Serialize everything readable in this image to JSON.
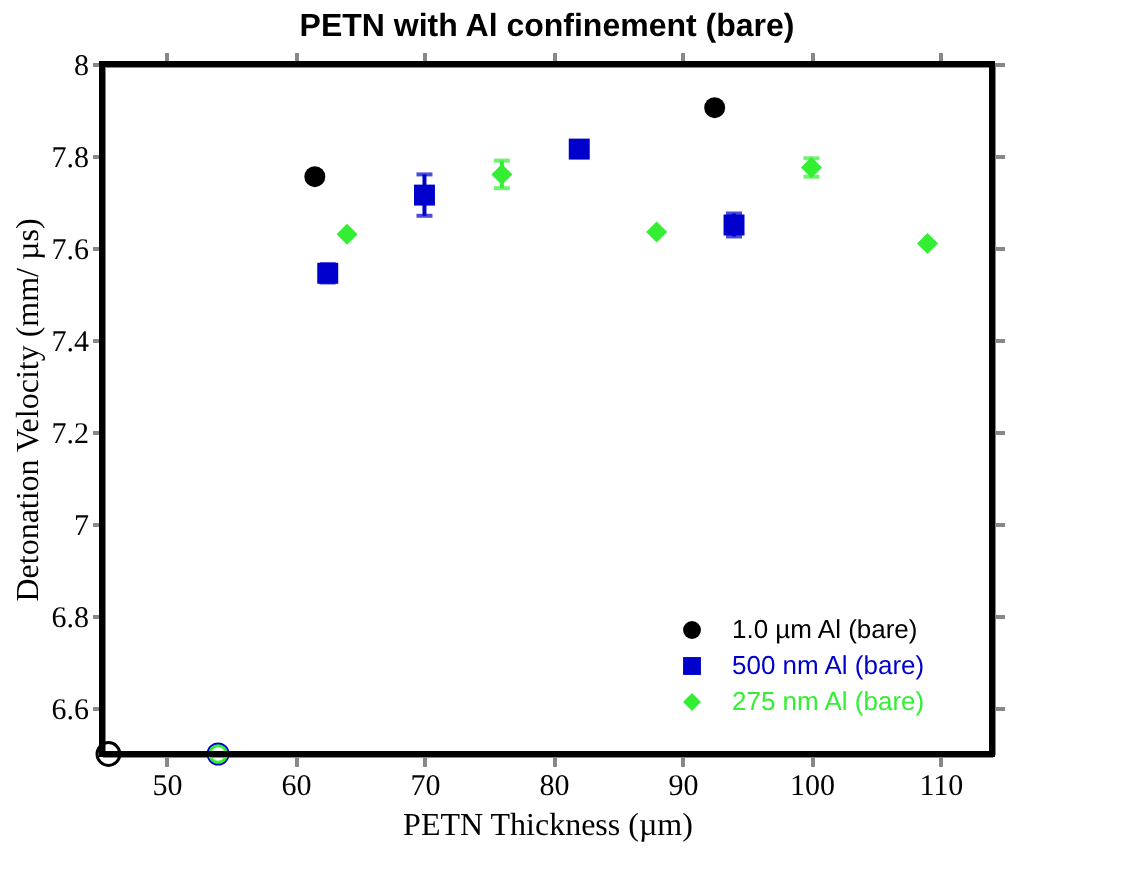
{
  "chart_data": {
    "type": "scatter",
    "title": "PETN with Al confinement (bare)",
    "xlabel": "PETN Thickness (µm)",
    "ylabel": "Detonation Velocity (mm/ µs)",
    "xlim": [
      45,
      114
    ],
    "xticks": [
      50,
      60,
      70,
      80,
      90,
      100,
      110
    ],
    "ylim": [
      6.5,
      8
    ],
    "yticks": [
      6.6,
      6.8,
      7,
      7.2,
      7.4,
      7.6,
      7.8,
      8
    ],
    "grid": false,
    "legend": "bottom right",
    "series": [
      {
        "name": "1.0 µm Al (bare)",
        "color": "#000000",
        "marker": "circle",
        "x": [
          61.5,
          92.5
        ],
        "values": [
          7.755,
          7.905
        ],
        "errors": [
          null,
          null
        ]
      },
      {
        "name": "500 nm Al (bare)",
        "color": "#0000cc",
        "marker": "square",
        "x": [
          62.5,
          70,
          82,
          94
        ],
        "values": [
          7.545,
          7.715,
          7.815,
          7.65
        ],
        "errors": [
          0.02,
          0.045,
          null,
          0.025
        ]
      },
      {
        "name": "275 nm Al (bare)",
        "color": "#33ee33",
        "marker": "diamond",
        "x": [
          64,
          76,
          88,
          100,
          109
        ],
        "values": [
          7.63,
          7.76,
          7.635,
          7.775,
          7.61
        ],
        "errors": [
          null,
          0.03,
          null,
          0.02,
          null
        ]
      },
      {
        "color": "#000000",
        "marker": "circle",
        "x": [
          45.5
        ],
        "values": [
          6.5
        ]
      },
      {
        "color": "#0000cc",
        "marker": "circle",
        "x": [
          54
        ],
        "values": [
          6.5
        ]
      },
      {
        "color": "#33ee33",
        "marker": "circle",
        "x": [
          54
        ],
        "values": [
          6.5
        ]
      }
    ]
  }
}
